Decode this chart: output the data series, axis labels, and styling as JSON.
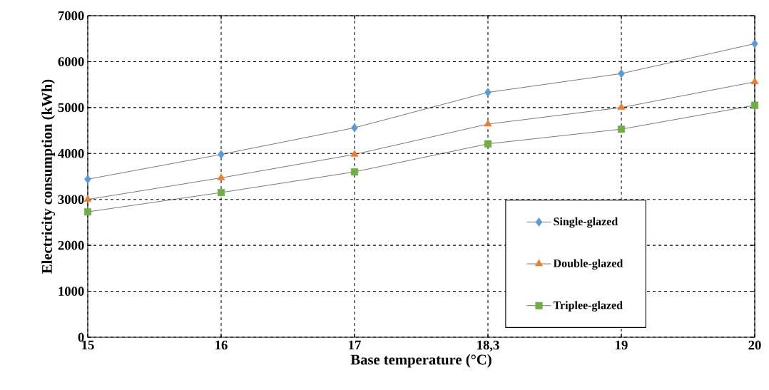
{
  "chart_data": {
    "type": "line",
    "xlabel": "Base temperature (°C)",
    "ylabel": "Electricity consumption (kWh)",
    "categories": [
      "15",
      "16",
      "17",
      "18,3",
      "19",
      "20"
    ],
    "series": [
      {
        "name": "Single-glazed",
        "color": "#5b9bd5",
        "marker": "diamond",
        "values": [
          3440,
          3980,
          4560,
          5330,
          5740,
          6390
        ]
      },
      {
        "name": "Double-glazed",
        "color": "#ed7d31",
        "marker": "triangle",
        "values": [
          3000,
          3470,
          3980,
          4640,
          5000,
          5560
        ]
      },
      {
        "name": "Triplee-glazed",
        "color": "#70ad47",
        "marker": "square",
        "values": [
          2730,
          3150,
          3600,
          4210,
          4530,
          5050
        ]
      }
    ],
    "ylim": [
      0,
      7000
    ],
    "yticks": [
      0,
      1000,
      2000,
      3000,
      4000,
      5000,
      6000,
      7000
    ],
    "grid": true,
    "legend": "bottom right",
    "line_style": "solid"
  }
}
